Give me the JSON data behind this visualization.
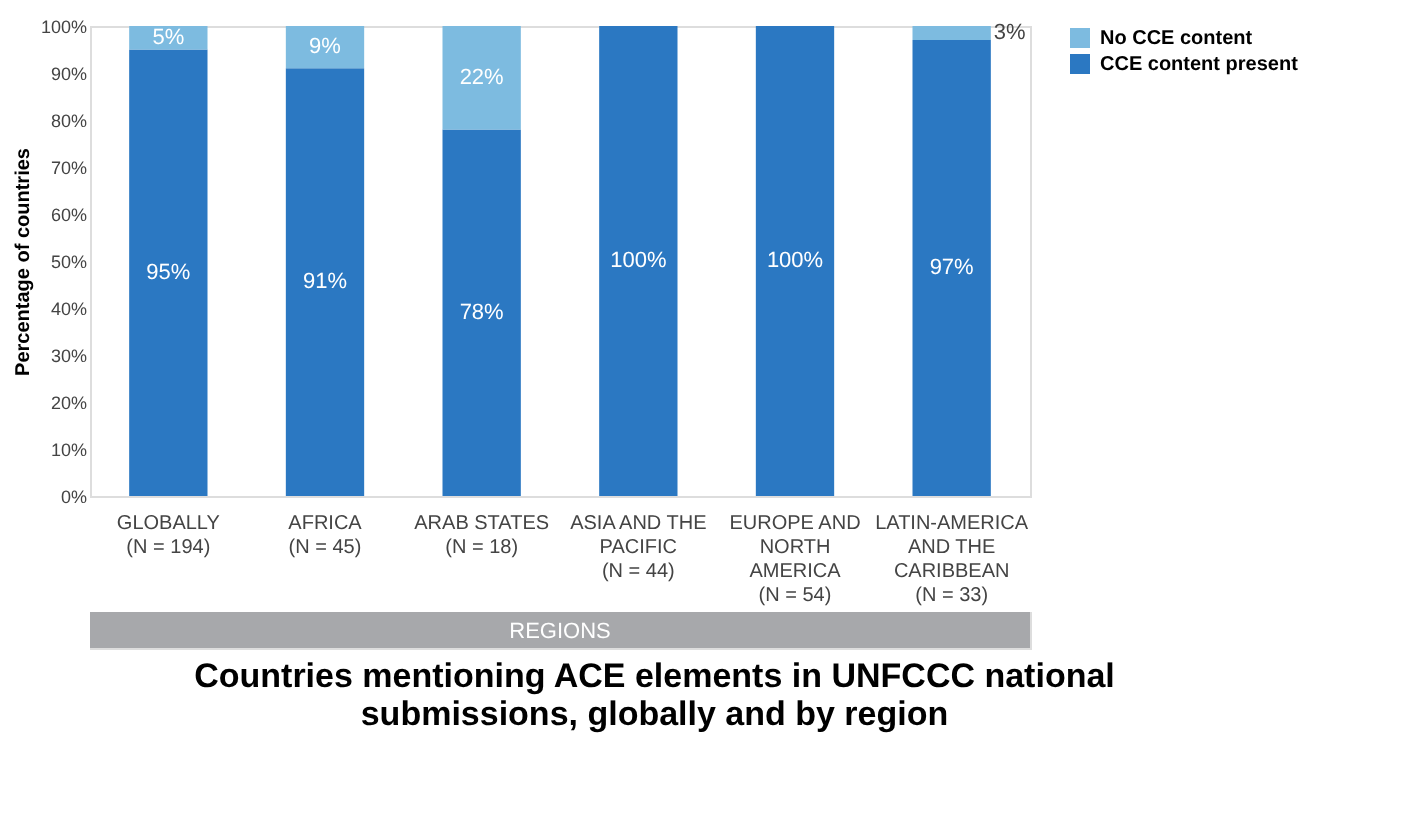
{
  "chart_data": {
    "type": "bar",
    "stacked": true,
    "title": "Countries mentioning ACE elements in UNFCCC national\nsubmissions, globally and by region",
    "xlabel": "REGIONS",
    "ylabel": "Percentage of countries",
    "categories": [
      "GLOBALLY\n(N = 194)",
      "AFRICA\n(N = 45)",
      "ARAB STATES\n(N = 18)",
      "ASIA AND THE\nPACIFIC\n(N = 44)",
      "EUROPE AND\nNORTH\nAMERICA\n(N = 54)",
      "LATIN-AMERICA\nAND THE\nCARIBBEAN\n(N = 33)"
    ],
    "series": [
      {
        "name": "CCE content present",
        "color": "#2b78c2",
        "values": [
          95,
          91,
          78,
          100,
          100,
          97
        ],
        "value_labels": [
          "95%",
          "91%",
          "78%",
          "100%",
          "100%",
          "97%"
        ]
      },
      {
        "name": "No CCE content",
        "color": "#7dbbe0",
        "values": [
          5,
          9,
          22,
          0,
          0,
          3
        ],
        "value_labels": [
          "5%",
          "9%",
          "22%",
          null,
          null,
          "3%"
        ]
      }
    ],
    "ylim": [
      0,
      100
    ],
    "yticks": [
      {
        "value": 0,
        "label": "0%"
      },
      {
        "value": 10,
        "label": "10%"
      },
      {
        "value": 20,
        "label": "20%"
      },
      {
        "value": 30,
        "label": "30%"
      },
      {
        "value": 40,
        "label": "40%"
      },
      {
        "value": 50,
        "label": "50%"
      },
      {
        "value": 60,
        "label": "60%"
      },
      {
        "value": 70,
        "label": "70%"
      },
      {
        "value": 80,
        "label": "80%"
      },
      {
        "value": 90,
        "label": "90%"
      },
      {
        "value": 100,
        "label": "100%"
      }
    ],
    "legend": "right",
    "grid": false
  }
}
